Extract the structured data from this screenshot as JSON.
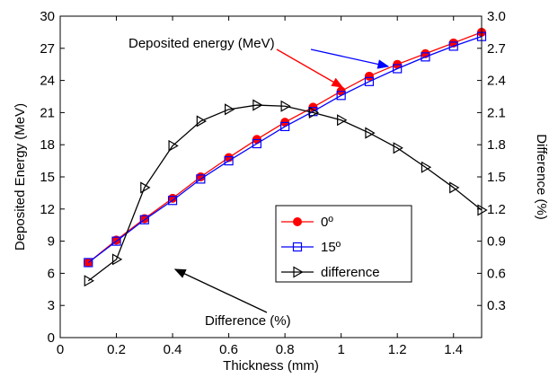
{
  "chart_data": {
    "type": "line",
    "xlabel": "Thickness (mm)",
    "ylabel_left": "Deposited Energy (MeV)",
    "ylabel_right": "Difference (%)",
    "xlim": [
      0,
      1.5
    ],
    "ylim_left": [
      0,
      30
    ],
    "ylim_right": [
      0,
      3.0
    ],
    "xticks": [
      "0",
      "0.2",
      "0.4",
      "0.6",
      "0.8",
      "1",
      "1.2",
      "1.4"
    ],
    "xtick_values": [
      0,
      0.2,
      0.4,
      0.6,
      0.8,
      1.0,
      1.2,
      1.4
    ],
    "yticks_left": [
      "0",
      "3",
      "6",
      "9",
      "12",
      "15",
      "18",
      "21",
      "24",
      "27",
      "30"
    ],
    "yticks_right": [
      "0.3",
      "0.6",
      "0.9",
      "1.2",
      "1.5",
      "1.8",
      "2.1",
      "2.4",
      "2.7",
      "3.0"
    ],
    "grid": false,
    "legend_position": "center-right",
    "x": [
      0.1,
      0.2,
      0.3,
      0.4,
      0.5,
      0.6,
      0.7,
      0.8,
      0.9,
      1.0,
      1.1,
      1.2,
      1.3,
      1.4,
      1.5
    ],
    "series": [
      {
        "name": "0º",
        "axis": "left",
        "color": "#ff0000",
        "marker": "circle",
        "values": [
          7.0,
          9.1,
          11.1,
          13.0,
          15.0,
          16.8,
          18.5,
          20.1,
          21.5,
          23.0,
          24.4,
          25.5,
          26.5,
          27.5,
          28.5
        ]
      },
      {
        "name": "15º",
        "axis": "left",
        "color": "#0000ff",
        "marker": "square",
        "values": [
          7.0,
          9.0,
          11.0,
          12.8,
          14.8,
          16.5,
          18.1,
          19.7,
          21.1,
          22.6,
          23.9,
          25.1,
          26.2,
          27.2,
          28.1
        ]
      },
      {
        "name": "difference",
        "axis": "right",
        "color": "#000000",
        "marker": "triangle-right",
        "values": [
          0.53,
          0.73,
          1.4,
          1.79,
          2.02,
          2.13,
          2.17,
          2.16,
          2.1,
          2.03,
          1.91,
          1.77,
          1.59,
          1.4,
          1.19
        ]
      }
    ],
    "annotations": [
      {
        "text": "Deposited energy (MeV)"
      },
      {
        "text": "Difference (%)"
      }
    ]
  }
}
